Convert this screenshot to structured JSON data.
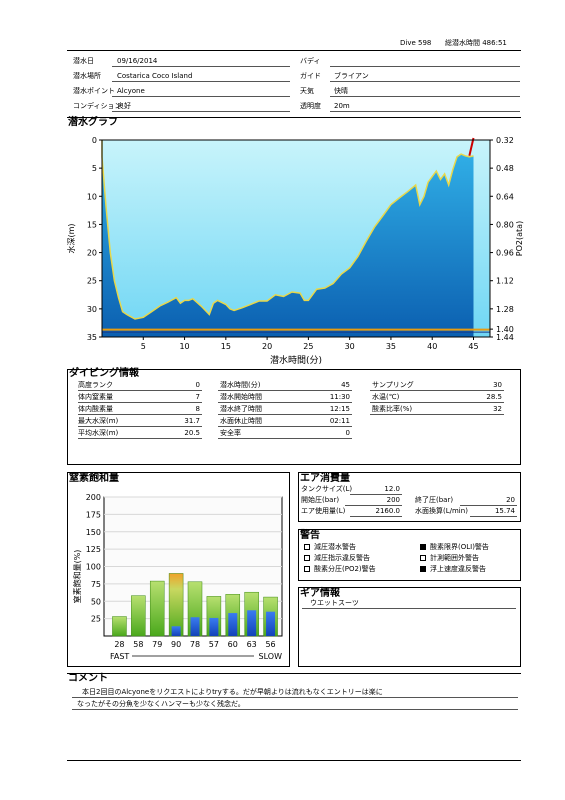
{
  "header": {
    "dive_label": "Dive 598",
    "total_time_label": "総潜水時間 486:51"
  },
  "info": {
    "left": [
      {
        "label": "潜水日",
        "value": "09/16/2014"
      },
      {
        "label": "潜水場所",
        "value": "Costarica Coco Island"
      },
      {
        "label": "潜水ポイント",
        "value": "Alcyone"
      },
      {
        "label": "コンディション",
        "value": "良好"
      }
    ],
    "right": [
      {
        "label": "バディ",
        "value": ""
      },
      {
        "label": "ガイド",
        "value": "ブライアン"
      },
      {
        "label": "天気",
        "value": "快晴"
      },
      {
        "label": "透明度",
        "value": "20m"
      }
    ]
  },
  "graph": {
    "title": "潜水グラフ",
    "colors": {
      "water_top": "#c8f4fb",
      "water_bottom": "#1a86c9",
      "sea_fill_top": "#2aa8e6",
      "sea_fill_bottom": "#0b5fb0",
      "profile": "#e8d84a",
      "ascent_alarm": "#cc0000",
      "deco_line": "#e89c10"
    }
  },
  "chart_data": {
    "type": "area",
    "xlabel": "潜水時間(分)",
    "ylabel": "水深(m)",
    "y2label": "PO2(ata)",
    "xlim": [
      0,
      47
    ],
    "ylim": [
      35,
      0
    ],
    "xticks": [
      5,
      10,
      15,
      20,
      25,
      30,
      35,
      40,
      45
    ],
    "yticks": [
      0,
      5,
      10,
      15,
      20,
      25,
      30,
      35
    ],
    "y2ticks": [
      "0.32",
      "0.48",
      "0.64",
      "0.80",
      "0.96",
      "1.12",
      "1.28",
      "1.40",
      "1.44"
    ],
    "series": [
      {
        "x": [
          0,
          0.5,
          1,
          1.5,
          2,
          2.5,
          3,
          4,
          5,
          6,
          7,
          8,
          9,
          9.5,
          10,
          10.5,
          11,
          12,
          13,
          13.5,
          14,
          15,
          15.5,
          16,
          17,
          18,
          19,
          20,
          21,
          22,
          23,
          24,
          24.5,
          25,
          26,
          27,
          28,
          29,
          30,
          31,
          32,
          33,
          34,
          35,
          36,
          37,
          38,
          38.5,
          39,
          39.5,
          40,
          40.5,
          41,
          41.5,
          42,
          42.5,
          43,
          43.5,
          44,
          44.5,
          45
        ],
        "y": [
          3,
          12,
          20,
          25,
          28,
          30.5,
          31,
          31.8,
          31.5,
          30.5,
          29.5,
          28.8,
          28,
          29,
          28.5,
          28.5,
          28.2,
          29.5,
          31,
          29,
          28.5,
          29.2,
          30,
          30.3,
          29.8,
          29.2,
          28.6,
          28.6,
          27.5,
          27.8,
          27,
          27.2,
          28.5,
          28.5,
          26.5,
          26.3,
          25.5,
          23.8,
          22.7,
          20.7,
          18,
          15.5,
          13.5,
          11.5,
          10.3,
          9.2,
          8,
          11.5,
          10,
          7.5,
          6.5,
          5.5,
          7,
          6,
          8,
          5.2,
          3,
          2.5,
          2.8,
          3,
          2.8
        ]
      }
    ],
    "ascent_alarm_segment": {
      "x": [
        44.5,
        45
      ],
      "y": [
        2.8,
        0
      ]
    },
    "deco_line_depth": 33.7
  },
  "diving": {
    "title": "ダイビング情報",
    "col1": [
      {
        "label": "高度ランク",
        "value": "0"
      },
      {
        "label": "体内窒素量",
        "value": "7"
      },
      {
        "label": "体内酸素量",
        "value": "8"
      },
      {
        "label": "最大水深(m)",
        "value": "31.7"
      },
      {
        "label": "平均水深(m)",
        "value": "20.5"
      }
    ],
    "col2": [
      {
        "label": "潜水時間(分)",
        "value": "45"
      },
      {
        "label": "潜水開始時間",
        "value": "11:30"
      },
      {
        "label": "潜水終了時間",
        "value": "12:15"
      },
      {
        "label": "水面休止時間",
        "value": "02:11"
      },
      {
        "label": "安全率",
        "value": "0"
      }
    ],
    "col3": [
      {
        "label": "サンプリング",
        "value": "30"
      },
      {
        "label": "水温(℃)",
        "value": "28.5"
      },
      {
        "label": "酸素比率(%)",
        "value": "32"
      }
    ]
  },
  "nitrogen": {
    "title": "窒素飽和量",
    "ylabel": "窒素飽和量(%)",
    "yticks": [
      25,
      50,
      75,
      100,
      125,
      150,
      175,
      200
    ],
    "fast_label": "FAST",
    "slow_label": "SLOW",
    "compartments": [
      "28",
      "58",
      "79",
      "90",
      "78",
      "57",
      "60",
      "63",
      "56"
    ],
    "green_values": [
      28,
      58,
      79,
      90,
      78,
      57,
      60,
      63,
      56
    ],
    "blue_values": [
      0,
      0,
      0,
      14,
      27,
      26,
      33,
      37,
      35
    ],
    "peak_index": 3,
    "colors": {
      "green": "#6cc22a",
      "green_top": "#b8e070",
      "blue": "#1d5ad6",
      "orange": "#f0a22a"
    }
  },
  "air": {
    "title": "エア消費量",
    "rows": [
      [
        {
          "label": "タンクサイズ(L)",
          "value": "12.0"
        }
      ],
      [
        {
          "label": "開始圧(bar)",
          "value": "200"
        },
        {
          "label": "終了圧(bar)",
          "value": "20"
        }
      ],
      [
        {
          "label": "エア使用量(L)",
          "value": "2160.0"
        },
        {
          "label": "水面換算(L/min)",
          "value": "15.74"
        }
      ]
    ]
  },
  "warnings": {
    "title": "警告",
    "items": [
      {
        "label": "減圧潜水警告",
        "checked": false
      },
      {
        "label": "酸素限界(OLI)警告",
        "checked": true
      },
      {
        "label": "減圧指示違反警告",
        "checked": false
      },
      {
        "label": "計測範囲外警告",
        "checked": false
      },
      {
        "label": "酸素分圧(PO2)警告",
        "checked": false
      },
      {
        "label": "浮上速度違反警告",
        "checked": true
      }
    ]
  },
  "gear": {
    "title": "ギア情報",
    "value": "ウエットスーツ"
  },
  "comment": {
    "title": "コメント",
    "line1": "本日2回目のAlcyoneをリクエストによりtryする。だが早朝よりは流れもなくエントリーは楽に",
    "line2": "なったがその分魚を少なくハンマーも少なく残念だ。"
  }
}
